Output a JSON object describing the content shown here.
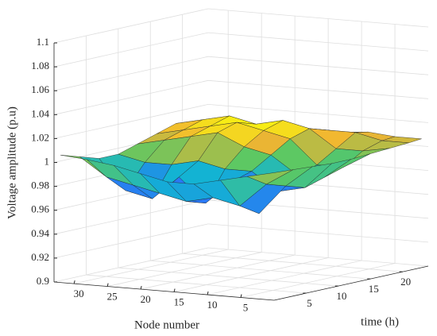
{
  "chart_data": {
    "type": "surface",
    "zlabel": "Voltage amplitude (p.u)",
    "ylabel": "Node number",
    "xlabel": "time (h)",
    "x": [
      1,
      4,
      7,
      10,
      13,
      16,
      19,
      22,
      24
    ],
    "y": [
      1,
      5,
      9,
      13,
      17,
      21,
      25,
      29,
      33
    ],
    "z": [
      [
        1.005,
        1.004,
        1.003,
        1.002,
        1.002,
        1.003,
        1.004,
        1.005,
        1.006
      ],
      [
        1.0,
        0.99,
        0.985,
        0.98,
        0.985,
        0.99,
        1.0,
        1.005,
        1.006
      ],
      [
        0.995,
        0.97,
        0.96,
        0.975,
        0.985,
        0.99,
        1.0,
        1.01,
        1.008
      ],
      [
        0.99,
        0.975,
        0.985,
        0.99,
        1.0,
        1.01,
        1.015,
        1.01,
        1.006
      ],
      [
        0.99,
        0.97,
        0.965,
        0.99,
        1.005,
        1.015,
        1.02,
        1.01,
        1.005
      ],
      [
        0.995,
        0.975,
        0.985,
        0.995,
        1.015,
        1.02,
        1.015,
        1.01,
        1.005
      ],
      [
        1.0,
        0.98,
        0.965,
        0.99,
        1.01,
        1.015,
        1.02,
        1.01,
        1.005
      ],
      [
        1.003,
        0.985,
        0.97,
        0.99,
        1.005,
        1.01,
        1.015,
        1.01,
        1.005
      ],
      [
        1.005,
        1.0,
        0.995,
        0.995,
        1.0,
        1.005,
        1.01,
        1.005,
        1.005
      ]
    ],
    "xlim": [
      0,
      24
    ],
    "xticks": [
      5,
      10,
      15,
      20
    ],
    "ylim": [
      0,
      33
    ],
    "yticks": [
      5,
      10,
      15,
      20,
      25,
      30
    ],
    "zlim": [
      0.9,
      1.1
    ],
    "zticks": [
      0.9,
      0.92,
      0.94,
      0.96,
      0.98,
      1,
      1.02,
      1.04,
      1.06,
      1.08,
      1.1
    ],
    "grid": true,
    "colormap": "parula"
  }
}
